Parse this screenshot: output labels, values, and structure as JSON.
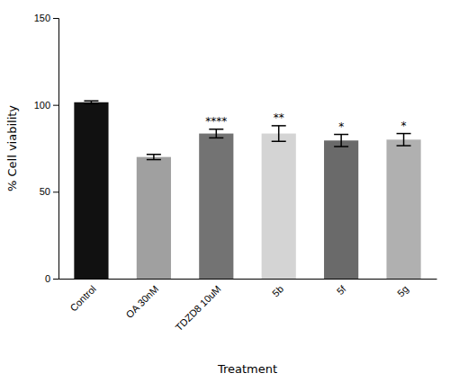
{
  "chart_data": {
    "type": "bar",
    "categories": [
      "Control",
      "OA 30nM",
      "TDZD8 10uM",
      "5b",
      "5f",
      "5g"
    ],
    "values": [
      101.5,
      70.0,
      83.5,
      83.5,
      79.5,
      80.0
    ],
    "errors": [
      0.8,
      1.5,
      2.5,
      4.5,
      3.5,
      3.5
    ],
    "colors": [
      "#111111",
      "#a0a0a0",
      "#737373",
      "#d4d4d4",
      "#6a6a6a",
      "#b0b0b0"
    ],
    "significance": [
      null,
      null,
      "****",
      "**",
      "*",
      "*"
    ],
    "xlabel": "Treatment",
    "ylabel": "% Cell viability",
    "ylim": [
      0,
      150
    ],
    "yticks": [
      0,
      50,
      100,
      150
    ],
    "grid": false
  }
}
